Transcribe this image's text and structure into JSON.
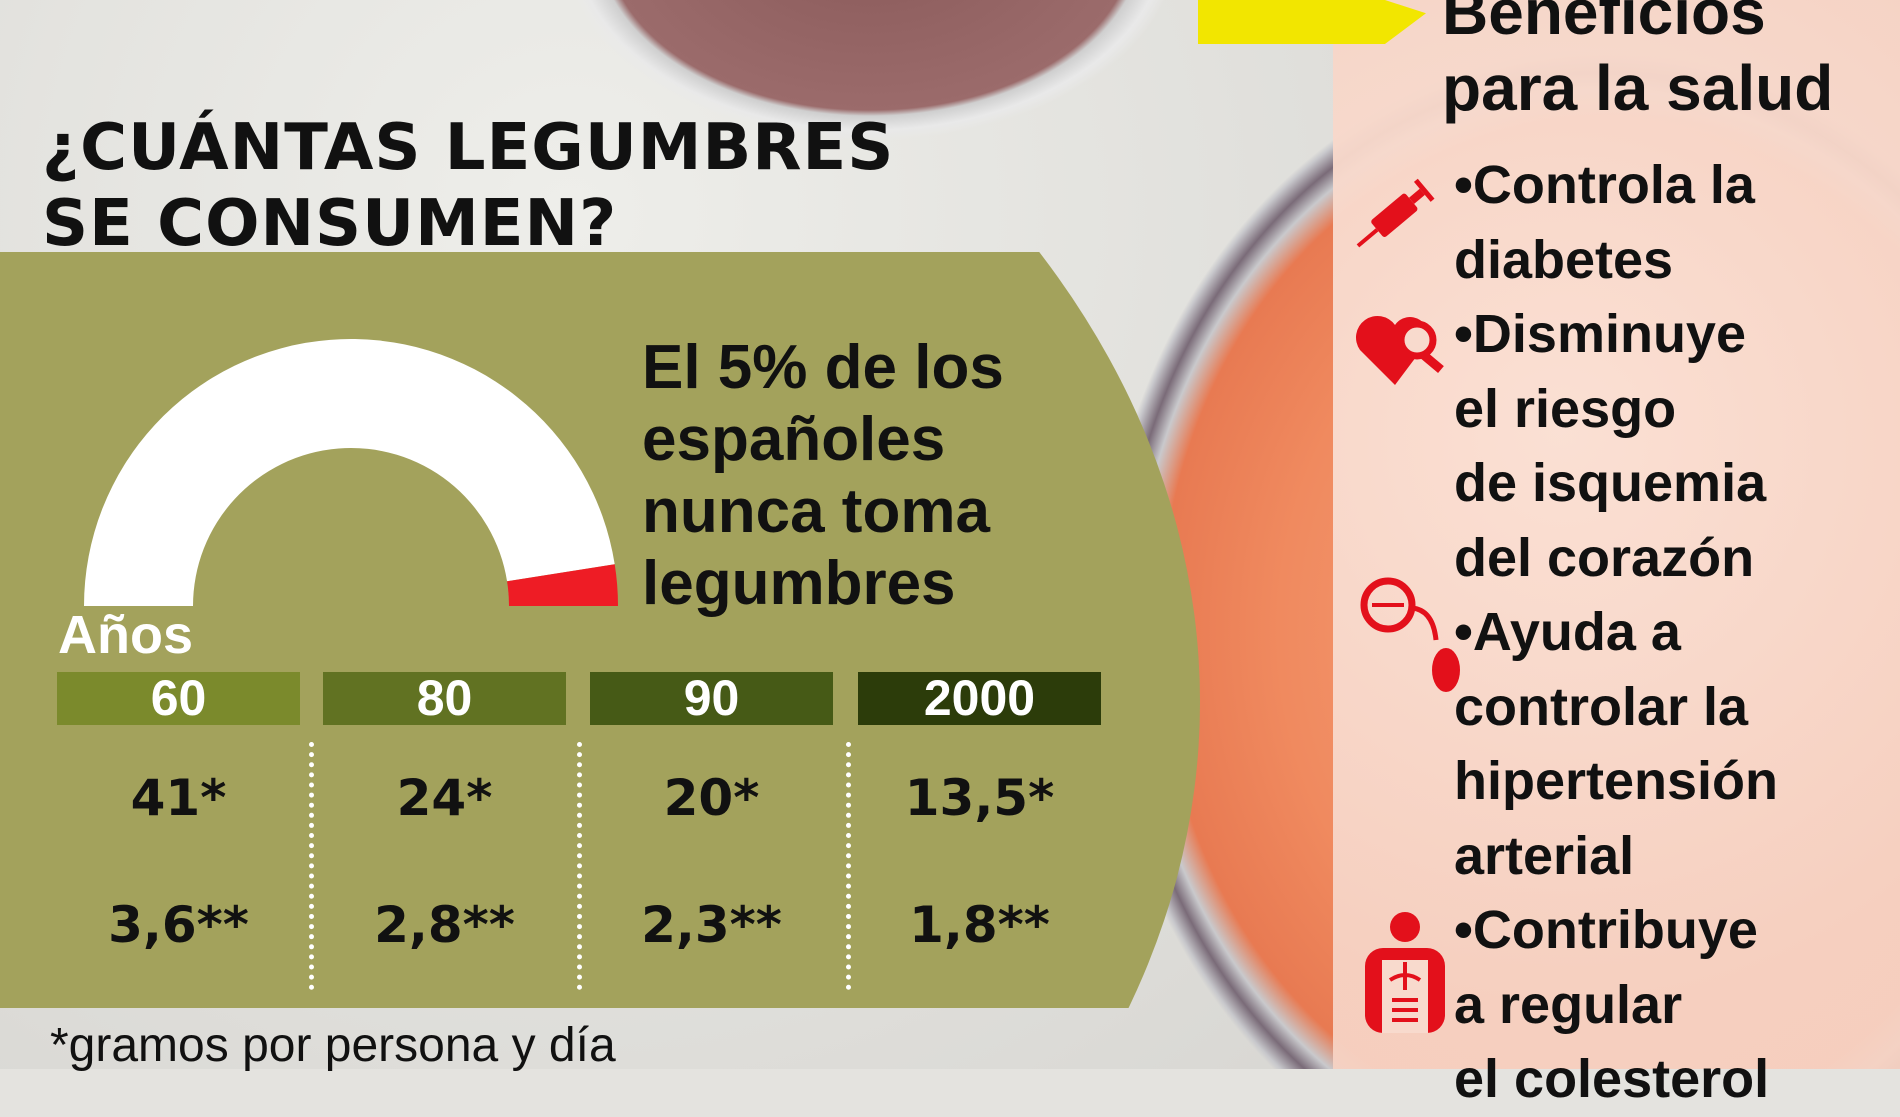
{
  "title": {
    "line1": "¿CUÁNTAS LEGUMBRES",
    "line2": "SE CONSUMEN?"
  },
  "gauge": {
    "percent_never": 5,
    "colors": {
      "main": "#ffffff",
      "highlight": "#ee1c25"
    },
    "text": [
      "El 5% de los",
      "españoles",
      "nunca toma",
      "legumbres"
    ]
  },
  "table": {
    "row_label": "Años",
    "headers": [
      "60",
      "80",
      "90",
      "2000"
    ],
    "header_colors": [
      "#7b8a2c",
      "#617222",
      "#465a16",
      "#2c3c0a"
    ],
    "row1": [
      "41*",
      "24*",
      "20*",
      "13,5*"
    ],
    "row2": [
      "3,6**",
      "2,8**",
      "2,3**",
      "1,8**"
    ]
  },
  "footnote": "*gramos por persona y día",
  "benefits": {
    "title": [
      "Beneficios",
      "para la salud"
    ],
    "lines": [
      "•Controla la",
      "diabetes",
      "•Disminuye",
      "el riesgo",
      "de isquemia",
      "del corazón",
      "•Ayuda a",
      "controlar la",
      "hipertensión",
      "arterial",
      "•Contribuye",
      "a regular",
      "el colesterol"
    ],
    "icons": [
      "syringe-icon",
      "heart-search-icon",
      "blood-pressure-icon",
      "body-organs-icon"
    ],
    "icon_color": "#e3101b",
    "arrow_color": "#f2e600"
  }
}
